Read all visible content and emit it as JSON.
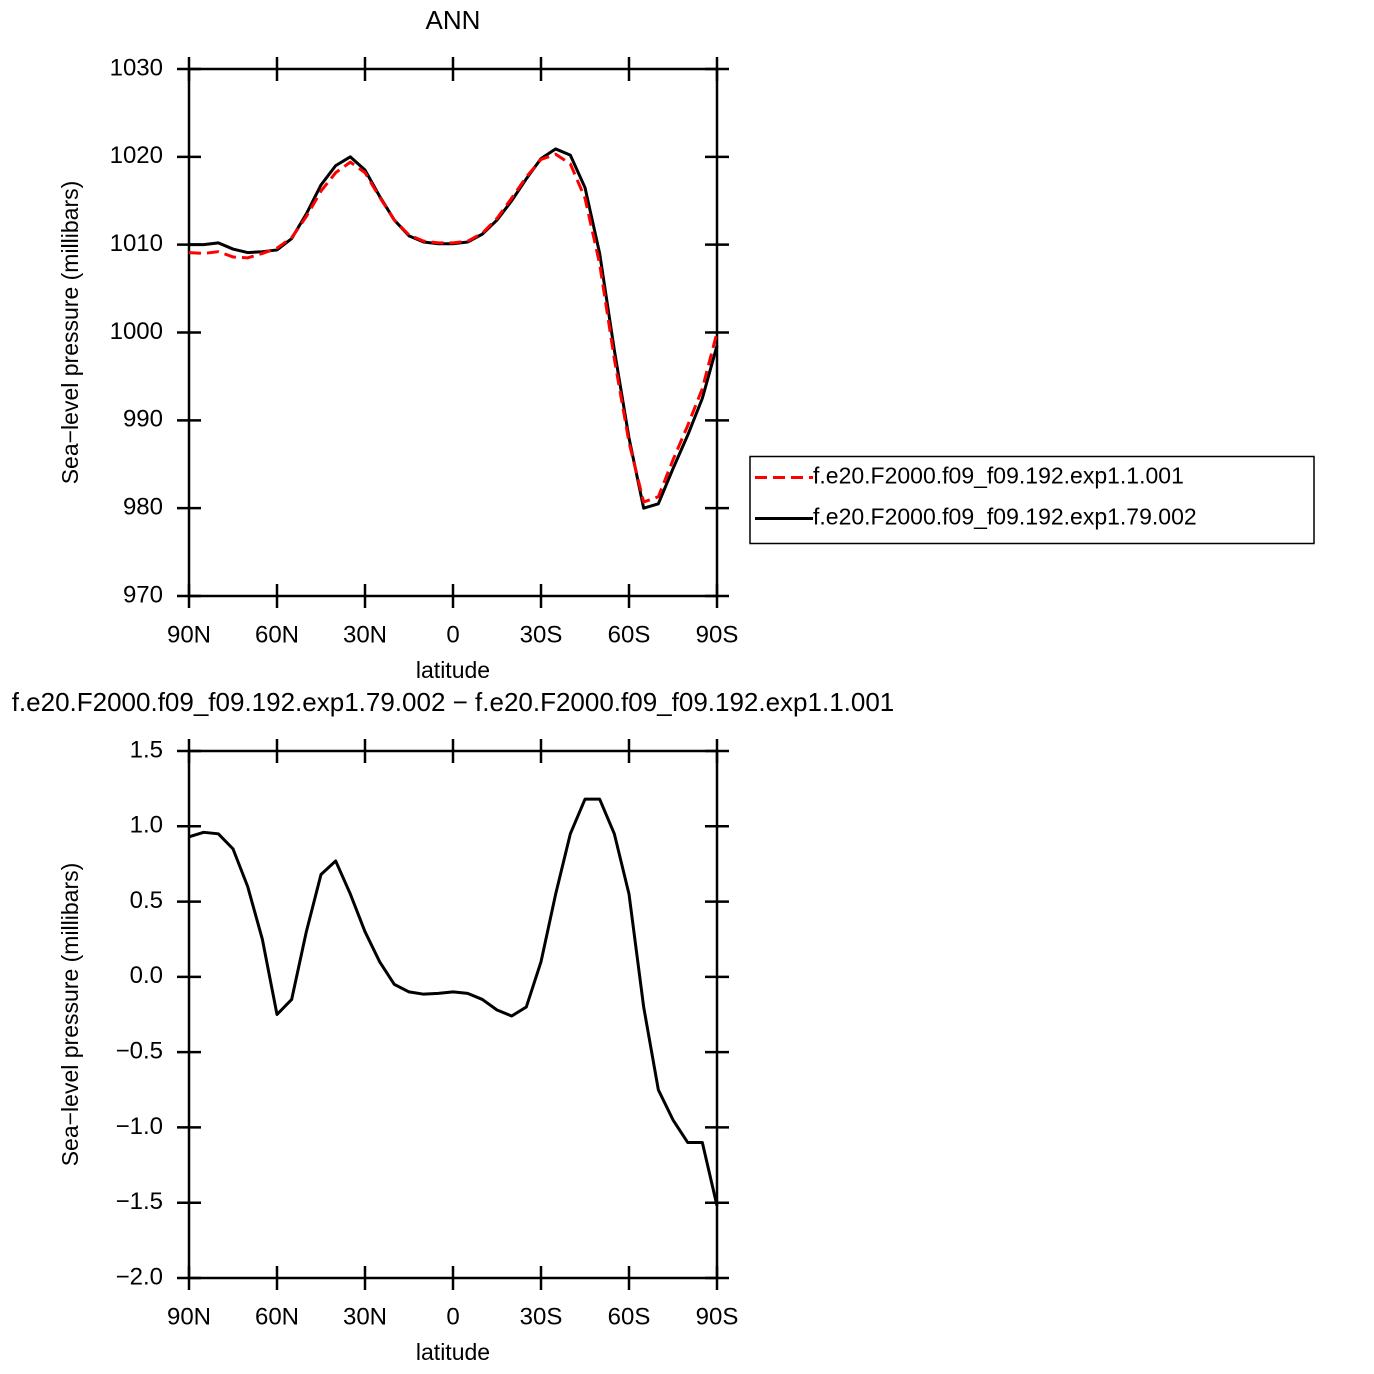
{
  "chart_data": [
    {
      "type": "line",
      "title": "ANN",
      "xlabel": "latitude",
      "ylabel": "Sea−level pressure (millibars)",
      "x": [
        90,
        85,
        80,
        75,
        70,
        65,
        60,
        55,
        50,
        45,
        40,
        35,
        30,
        25,
        20,
        15,
        10,
        5,
        0,
        -5,
        -10,
        -15,
        -20,
        -25,
        -30,
        -35,
        -40,
        -45,
        -50,
        -55,
        -60,
        -65,
        -70,
        -75,
        -80,
        -85,
        -90
      ],
      "series": [
        {
          "name": "f.e20.F2000.f09_f09.192.exp1.1.001",
          "color": "#ff0000",
          "linestyle": "dashed",
          "values": [
            1009.1,
            1009.0,
            1009.2,
            1008.6,
            1008.5,
            1009.0,
            1009.6,
            1010.8,
            1013.2,
            1016.1,
            1018.2,
            1019.4,
            1018.2,
            1015.4,
            1012.8,
            1011.1,
            1010.4,
            1010.2,
            1010.2,
            1010.4,
            1011.3,
            1013.0,
            1015.3,
            1017.7,
            1019.7,
            1020.3,
            1019.2,
            1015.3,
            1007.8,
            997.0,
            987.5,
            980.7,
            981.3,
            985.5,
            989.4,
            993.6,
            1000.0
          ]
        },
        {
          "name": "f.e20.F2000.f09_f09.192.exp1.79.002",
          "color": "#000000",
          "linestyle": "solid",
          "values": [
            1010.0,
            1010.0,
            1010.2,
            1009.5,
            1009.1,
            1009.2,
            1009.4,
            1010.7,
            1013.5,
            1016.8,
            1019.0,
            1020.0,
            1018.5,
            1015.5,
            1012.8,
            1011.0,
            1010.3,
            1010.1,
            1010.1,
            1010.3,
            1011.2,
            1012.8,
            1015.0,
            1017.5,
            1019.8,
            1020.9,
            1020.2,
            1016.5,
            1009.0,
            998.0,
            988.0,
            980.0,
            980.5,
            984.5,
            988.3,
            992.5,
            998.5
          ]
        }
      ],
      "xlim": [
        90,
        -90
      ],
      "ylim": [
        970,
        1030
      ],
      "xticks": [
        {
          "value": 90,
          "label": "90N"
        },
        {
          "value": 60,
          "label": "60N"
        },
        {
          "value": 30,
          "label": "30N"
        },
        0,
        {
          "value": -30,
          "label": "30S"
        },
        {
          "value": -60,
          "label": "60S"
        },
        {
          "value": -90,
          "label": "90S"
        }
      ],
      "yticks": [
        970,
        980,
        990,
        1000,
        1010,
        1020,
        1030
      ],
      "legend": "right"
    },
    {
      "type": "line",
      "title": "f.e20.F2000.f09_f09.192.exp1.79.002 − f.e20.F2000.f09_f09.192.exp1.1.001",
      "xlabel": "latitude",
      "ylabel": "Sea−level pressure (millibars)",
      "x": [
        90,
        85,
        80,
        75,
        70,
        65,
        60,
        55,
        50,
        45,
        40,
        35,
        30,
        25,
        20,
        15,
        10,
        5,
        0,
        -5,
        -10,
        -15,
        -20,
        -25,
        -30,
        -35,
        -40,
        -45,
        -50,
        -55,
        -60,
        -65,
        -70,
        -75,
        -80,
        -85,
        -90
      ],
      "series": [
        {
          "color": "#000000",
          "linestyle": "solid",
          "values": [
            0.93,
            0.96,
            0.95,
            0.85,
            0.6,
            0.25,
            -0.25,
            -0.15,
            0.3,
            0.68,
            0.77,
            0.55,
            0.3,
            0.1,
            -0.05,
            -0.1,
            -0.115,
            -0.11,
            -0.1,
            -0.11,
            -0.15,
            -0.22,
            -0.26,
            -0.2,
            0.1,
            0.55,
            0.95,
            1.18,
            1.18,
            0.95,
            0.55,
            -0.2,
            -0.75,
            -0.95,
            -1.1,
            -1.1,
            -1.52
          ]
        }
      ],
      "xlim": [
        90,
        -90
      ],
      "ylim": [
        -2.0,
        1.5
      ],
      "xticks": [
        {
          "value": 90,
          "label": "90N"
        },
        {
          "value": 60,
          "label": "60N"
        },
        {
          "value": 30,
          "label": "30N"
        },
        0,
        {
          "value": -30,
          "label": "30S"
        },
        {
          "value": -60,
          "label": "60S"
        },
        {
          "value": -90,
          "label": "90S"
        }
      ],
      "yticks": [
        {
          "value": -2,
          "label": "−2.0"
        },
        {
          "value": -1.5,
          "label": "−1.5"
        },
        {
          "value": -1,
          "label": "−1.0"
        },
        {
          "value": -0.5,
          "label": "−0.5"
        },
        {
          "value": 0,
          "label": "0.0"
        },
        0.5,
        {
          "value": 1,
          "label": "1.0"
        },
        1.5
      ]
    }
  ]
}
